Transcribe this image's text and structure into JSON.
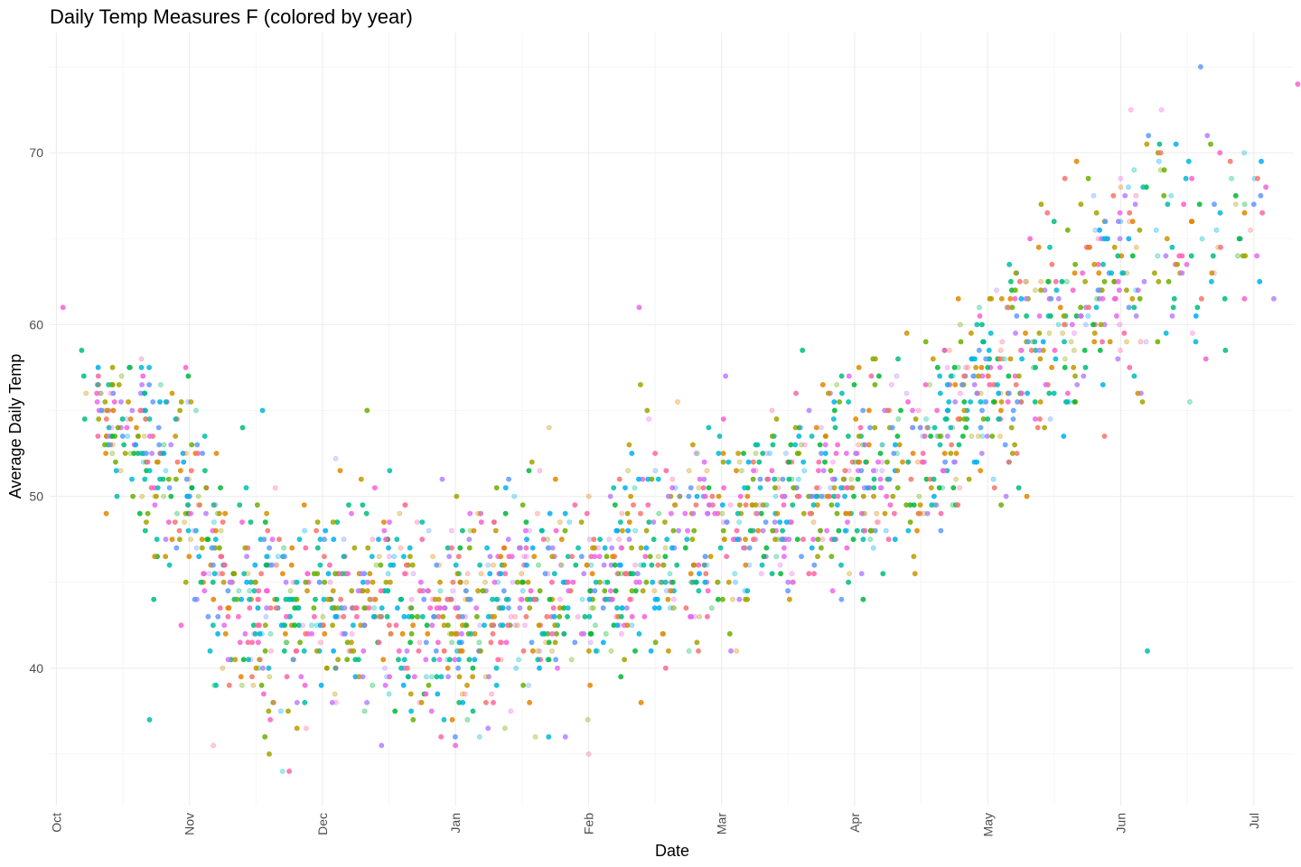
{
  "chart_data": {
    "type": "scatter",
    "title": "Daily Temp Measures F (colored by year)",
    "xlabel": "Date",
    "ylabel": "Average Daily Temp",
    "x_ticks": [
      "Oct",
      "Nov",
      "Dec",
      "Jan",
      "Feb",
      "Mar",
      "Apr",
      "May",
      "Jun",
      "Jul"
    ],
    "y_ticks": [
      40,
      50,
      60,
      70
    ],
    "ylim": [
      32,
      77
    ],
    "xlim_months": [
      -0.05,
      9.3
    ],
    "grid": true,
    "legend": "none",
    "palette": [
      "#F8766D",
      "#E58700",
      "#C99800",
      "#A3A500",
      "#6BB100",
      "#00BA38",
      "#00BF7D",
      "#00C0AF",
      "#00BCD8",
      "#00B0F6",
      "#619CFF",
      "#B983FF",
      "#E76BF3",
      "#FD61D1",
      "#FF67A4"
    ],
    "anchors": [
      [
        0.05,
        61
      ],
      [
        0.1,
        57.5
      ],
      [
        0.2,
        57
      ],
      [
        0.3,
        55
      ],
      [
        0.4,
        54
      ],
      [
        0.5,
        54
      ],
      [
        0.6,
        53
      ],
      [
        0.7,
        52
      ],
      [
        0.8,
        51
      ],
      [
        0.9,
        51
      ],
      [
        1.0,
        50
      ],
      [
        1.1,
        48
      ],
      [
        1.2,
        46
      ],
      [
        1.3,
        44
      ],
      [
        1.5,
        44
      ],
      [
        1.7,
        43.5
      ],
      [
        2.0,
        44
      ],
      [
        2.3,
        44
      ],
      [
        2.5,
        44
      ],
      [
        2.7,
        43
      ],
      [
        2.9,
        42.5
      ],
      [
        3.0,
        42.5
      ],
      [
        3.3,
        43.5
      ],
      [
        3.6,
        44
      ],
      [
        4.0,
        45
      ],
      [
        4.3,
        46
      ],
      [
        4.7,
        47
      ],
      [
        5.0,
        48
      ],
      [
        5.3,
        49
      ],
      [
        5.6,
        50
      ],
      [
        6.0,
        51
      ],
      [
        6.3,
        52.5
      ],
      [
        6.6,
        53.5
      ],
      [
        7.0,
        56
      ],
      [
        7.3,
        58
      ],
      [
        7.6,
        61
      ],
      [
        8.0,
        63
      ],
      [
        8.3,
        65
      ],
      [
        8.7,
        65
      ],
      [
        9.0,
        66
      ],
      [
        9.2,
        66
      ]
    ],
    "notable_points": [
      [
        0.05,
        61
      ],
      [
        4.38,
        61
      ],
      [
        5.03,
        57
      ],
      [
        8.2,
        41
      ],
      [
        7.7,
        67
      ],
      [
        8.0,
        66
      ],
      [
        8.0,
        68
      ],
      [
        8.1,
        69
      ],
      [
        8.3,
        70
      ],
      [
        8.3,
        69
      ],
      [
        8.6,
        75
      ],
      [
        8.65,
        71
      ],
      [
        9.0,
        67
      ],
      [
        9.33,
        74
      ],
      [
        3.6,
        36
      ],
      [
        3.7,
        36
      ],
      [
        4.0,
        35
      ],
      [
        1.7,
        34
      ],
      [
        1.75,
        34
      ],
      [
        1.6,
        35
      ],
      [
        2.9,
        51
      ],
      [
        3.4,
        51
      ],
      [
        1.05,
        55
      ],
      [
        1.55,
        55
      ],
      [
        1.4,
        54
      ],
      [
        2.1,
        52.2
      ],
      [
        4.5,
        52.5
      ],
      [
        0.7,
        37
      ],
      [
        1.2,
        39
      ],
      [
        1.3,
        39
      ]
    ],
    "n_points": 2200,
    "seed": 20240501
  }
}
